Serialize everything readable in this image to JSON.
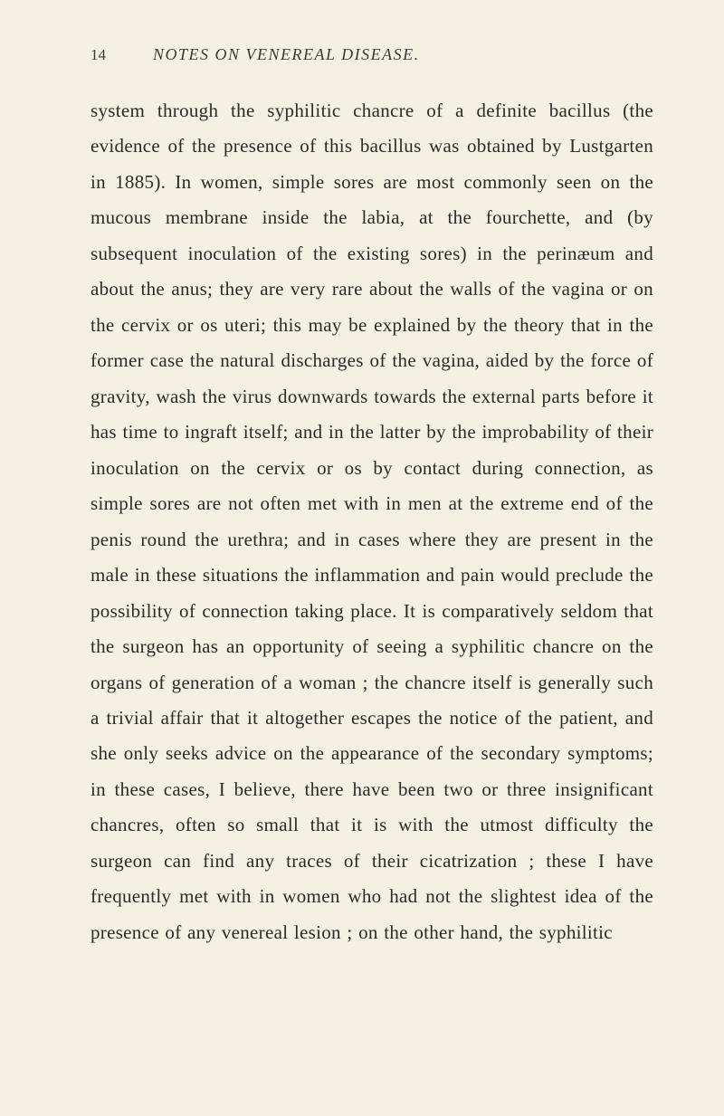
{
  "page": {
    "number": "14",
    "running_title": "NOTES ON VENEREAL DISEASE.",
    "body": "system through the syphilitic chancre of a definite bacillus (the evidence of the presence of this bacillus was obtained by Lustgarten in 1885). In women, simple sores are most commonly seen on the mucous membrane inside the labia, at the fourchette, and (by subsequent inoculation of the existing sores) in the perinæum and about the anus; they are very rare about the walls of the vagina or on the cervix or os uteri; this may be explained by the theory that in the former case the natural discharges of the vagina, aided by the force of gravity, wash the virus downwards towards the external parts before it has time to ingraft itself; and in the latter by the improbability of their inoculation on the cervix or os by contact during connection, as simple sores are not often met with in men at the extreme end of the penis round the urethra; and in cases where they are present in the male in these situations the inflammation and pain would preclude the possibility of connection taking place. It is comparatively seldom that the surgeon has an opportunity of seeing a syphilitic chancre on the organs of generation of a woman ; the chancre itself is generally such a trivial affair that it altogether escapes the notice of the patient, and she only seeks advice on the appearance of the secondary symptoms; in these cases, I believe, there have been two or three insignificant chancres, often so small that it is with the utmost difficulty the surgeon can find any traces of their cicatrization ; these I have frequently met with in women who had not the slightest idea of the presence of any venereal lesion ; on the other hand, the syphilitic"
  },
  "colors": {
    "background": "#f5f0e4",
    "text": "#2b2b26",
    "header_text": "#3a3a35"
  },
  "typography": {
    "body_fontsize": 21,
    "body_lineheight": 1.88,
    "header_fontsize": 18,
    "pagenum_fontsize": 17,
    "font_family": "Georgia, Times New Roman, serif"
  }
}
